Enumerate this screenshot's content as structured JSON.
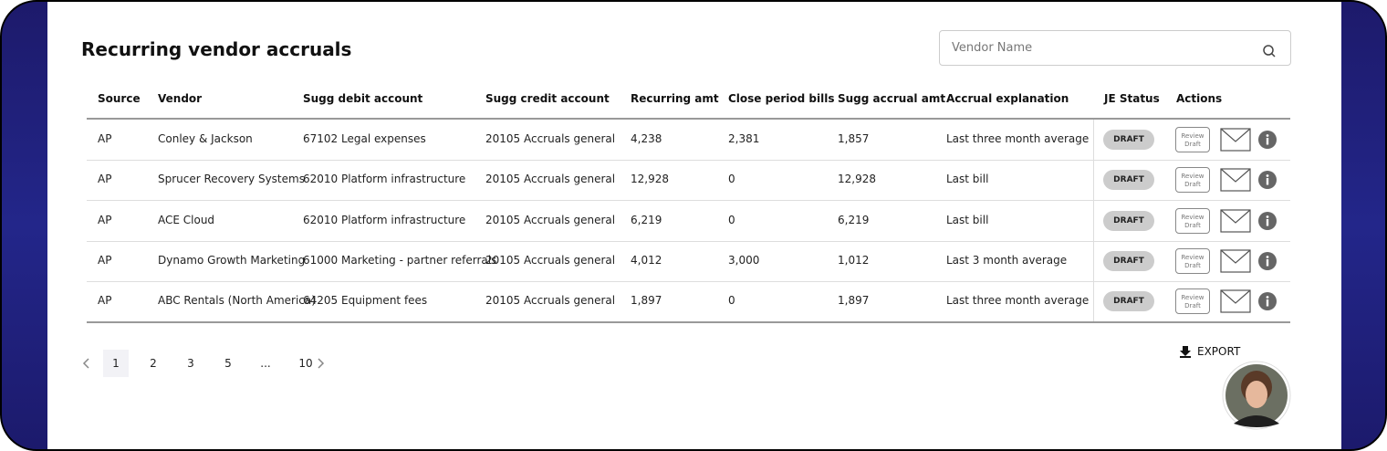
{
  "header": {
    "title": "Recurring vendor accruals"
  },
  "search": {
    "placeholder": "Vendor Name"
  },
  "table": {
    "columns": [
      "Source",
      "Vendor",
      "Sugg debit account",
      "Sugg credit account",
      "Recurring amt",
      "Close period bills",
      "Sugg accrual amt",
      "Accrual explanation",
      "JE Status",
      "Actions"
    ],
    "rows": [
      [
        "AP",
        "Conley & Jackson",
        "67102 Legal expenses",
        "20105 Accruals general",
        "4,238",
        "2,381",
        "1,857",
        "Last three month average",
        "DRAFT"
      ],
      [
        "AP",
        "Sprucer Recovery Systems",
        "62010 Platform infrastructure",
        "20105 Accruals general",
        "12,928",
        "0",
        "12,928",
        "Last bill",
        "DRAFT"
      ],
      [
        "AP",
        "ACE Cloud",
        "62010 Platform infrastructure",
        "20105 Accruals general",
        "6,219",
        "0",
        "6,219",
        "Last bill",
        "DRAFT"
      ],
      [
        "AP",
        "Dynamo Growth Marketing",
        "61000 Marketing - partner referrals",
        "20105 Accruals general",
        "4,012",
        "3,000",
        "1,012",
        "Last 3 month average",
        "DRAFT"
      ],
      [
        "AP",
        "ABC Rentals (North America)",
        "64205 Equipment fees",
        "20105 Accruals general",
        "1,897",
        "0",
        "1,897",
        "Last three month average",
        "DRAFT"
      ]
    ],
    "review_label": "Review Draft"
  },
  "pagination": {
    "pages": [
      "1",
      "2",
      "3",
      "5",
      "...",
      "10"
    ]
  },
  "export": {
    "label": "EXPORT"
  }
}
